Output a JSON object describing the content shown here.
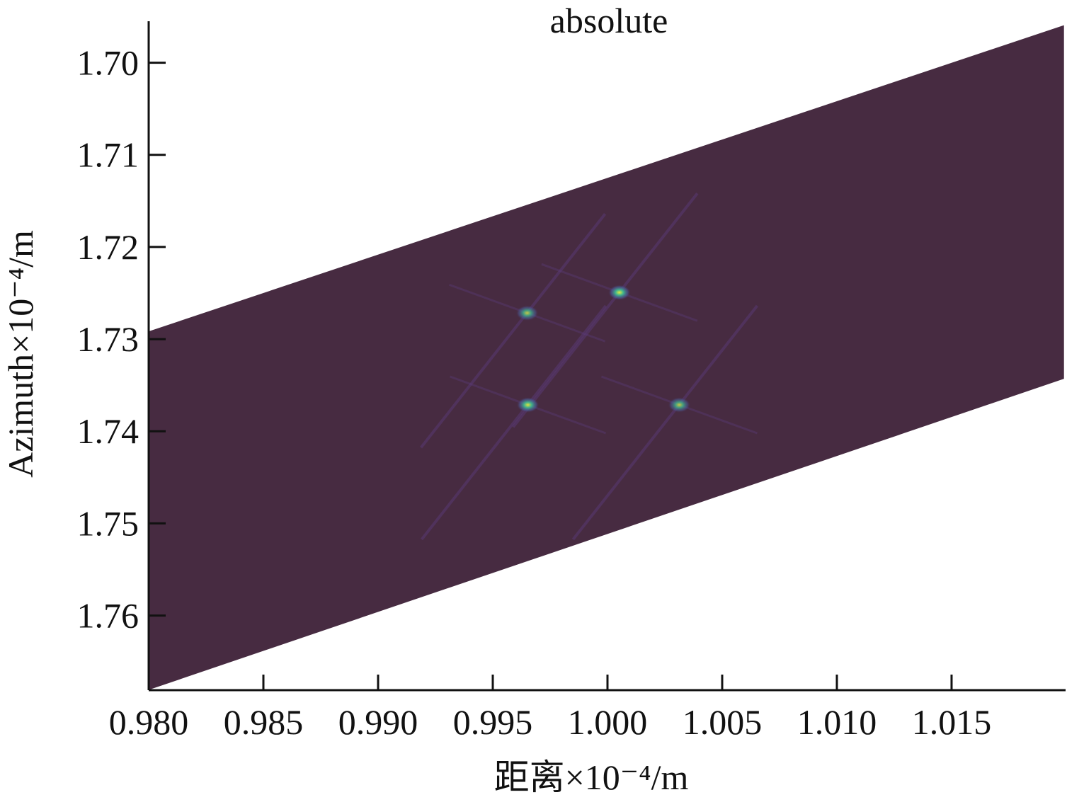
{
  "chart_data": {
    "type": "heatmap",
    "title": "absolute",
    "xlabel": "距离×10⁻⁴/m",
    "ylabel": "Azimuth×10⁻⁴/m",
    "xlim": [
      0.98,
      1.01997
    ],
    "ylim": [
      1.6955,
      1.7681
    ],
    "y_inverted": true,
    "x_ticks": [
      "0.980",
      "0.985",
      "0.990",
      "0.995",
      "1.000",
      "1.005",
      "1.010",
      "1.015"
    ],
    "x_tick_values": [
      0.98,
      0.985,
      0.99,
      0.995,
      1.0,
      1.005,
      1.01,
      1.015
    ],
    "y_ticks": [
      "1.70",
      "1.71",
      "1.72",
      "1.73",
      "1.74",
      "1.75",
      "1.76"
    ],
    "y_tick_values": [
      1.7,
      1.71,
      1.72,
      1.73,
      1.74,
      1.75,
      1.76
    ],
    "grid": false,
    "background_color": "#472b41",
    "data_region": [
      [
        0.98,
        1.72916
      ],
      [
        1.0199,
        1.69593
      ],
      [
        1.0199,
        1.73431
      ],
      [
        0.98,
        1.76807
      ]
    ],
    "point_targets": [
      {
        "x": 0.9965,
        "y": 1.72717,
        "intensity": 0.8
      },
      {
        "x": 1.00052,
        "y": 1.72494,
        "intensity": 1.0
      },
      {
        "x": 0.99653,
        "y": 1.73714,
        "intensity": 0.95
      },
      {
        "x": 1.00313,
        "y": 1.73714,
        "intensity": 0.8
      }
    ],
    "colors": {
      "low": "#472b41",
      "mid": "#3bb08f",
      "high": "#d8e83a",
      "sidelobe": "#5a3a78"
    }
  }
}
